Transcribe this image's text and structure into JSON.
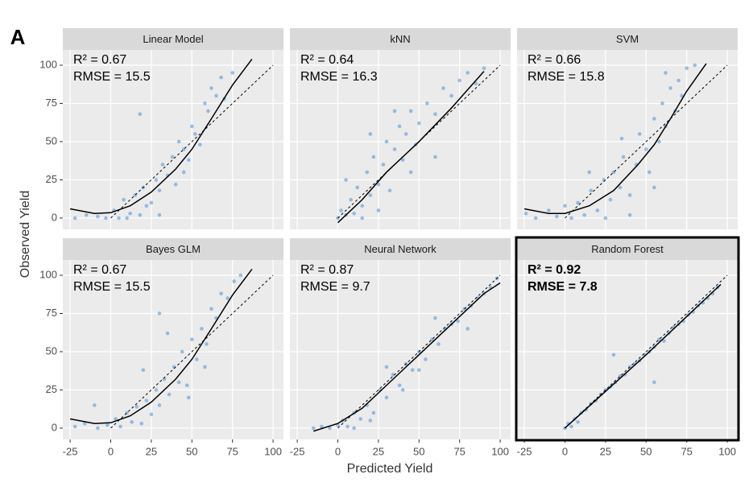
{
  "panel_label": "A",
  "xlabel": "Predicted Yield",
  "ylabel": "Observed Yield",
  "chart_data": [
    {
      "type": "scatter",
      "title": "Linear Model",
      "annotations": [
        "R² = 0.67",
        "RMSE = 15.5"
      ],
      "highlight": false,
      "xlim": [
        -29.5,
        106.4
      ],
      "ylim": [
        -7.4,
        110
      ],
      "xticks": [
        -25,
        0,
        25,
        50,
        75,
        100
      ],
      "yticks": [
        0,
        25,
        50,
        75,
        100
      ],
      "grid": true,
      "points": {
        "color": "#4a8fd6",
        "x": [
          -22,
          -15,
          -8,
          -3,
          2,
          5,
          8,
          12,
          15,
          18,
          20,
          22,
          25,
          28,
          30,
          32,
          35,
          38,
          40,
          42,
          45,
          48,
          50,
          52,
          55,
          58,
          60,
          62,
          65,
          68,
          70,
          75,
          18,
          30,
          10,
          45
        ],
        "y": [
          0,
          2,
          1,
          0,
          5,
          0,
          12,
          3,
          15,
          2,
          20,
          8,
          10,
          25,
          18,
          35,
          28,
          40,
          22,
          50,
          45,
          38,
          60,
          55,
          48,
          75,
          70,
          85,
          80,
          92,
          78,
          95,
          68,
          2,
          0,
          30
        ]
      },
      "fit": {
        "color": "#000000",
        "x": [
          -25,
          -10,
          0,
          12,
          25,
          40,
          50,
          62,
          75,
          87
        ],
        "y": [
          6,
          3,
          3.5,
          8,
          17,
          32,
          45,
          65,
          87,
          104
        ]
      },
      "reference": {
        "color": "#000000",
        "x": [
          0,
          100
        ],
        "y": [
          0,
          100
        ]
      }
    },
    {
      "type": "scatter",
      "title": "kNN",
      "annotations": [
        "R² = 0.64",
        "RMSE = 16.3"
      ],
      "highlight": false,
      "xlim": [
        -29.5,
        106.4
      ],
      "ylim": [
        -7.4,
        110
      ],
      "xticks": [
        -25,
        0,
        25,
        50,
        75,
        100
      ],
      "yticks": [
        0,
        25,
        50,
        75,
        100
      ],
      "grid": true,
      "points": {
        "color": "#4a8fd6",
        "x": [
          0,
          2,
          5,
          8,
          10,
          12,
          15,
          18,
          20,
          22,
          25,
          28,
          30,
          32,
          35,
          38,
          40,
          42,
          45,
          48,
          50,
          55,
          60,
          65,
          70,
          75,
          80,
          85,
          90,
          5,
          15,
          25,
          35,
          45,
          60,
          20
        ],
        "y": [
          0,
          5,
          2,
          12,
          3,
          20,
          8,
          30,
          15,
          40,
          22,
          35,
          50,
          18,
          45,
          60,
          38,
          55,
          70,
          48,
          62,
          75,
          68,
          85,
          80,
          90,
          95,
          88,
          98,
          25,
          0,
          5,
          70,
          30,
          40,
          55
        ]
      },
      "fit": {
        "color": "#000000",
        "x": [
          0,
          15,
          30,
          50,
          70,
          90
        ],
        "y": [
          -3,
          12,
          30,
          50,
          72,
          96
        ]
      },
      "reference": {
        "color": "#000000",
        "x": [
          0,
          100
        ],
        "y": [
          0,
          100
        ]
      }
    },
    {
      "type": "scatter",
      "title": "SVM",
      "annotations": [
        "R² = 0.66",
        "RMSE = 15.8"
      ],
      "highlight": false,
      "xlim": [
        -29.5,
        106.4
      ],
      "ylim": [
        -7.4,
        110
      ],
      "xticks": [
        -25,
        0,
        25,
        50,
        75,
        100
      ],
      "yticks": [
        0,
        25,
        50,
        75,
        100
      ],
      "grid": true,
      "points": {
        "color": "#4a8fd6",
        "x": [
          -24,
          -18,
          -10,
          -5,
          0,
          4,
          8,
          12,
          16,
          20,
          24,
          28,
          30,
          34,
          36,
          40,
          44,
          46,
          50,
          52,
          55,
          58,
          60,
          62,
          65,
          68,
          70,
          72,
          75,
          80,
          25,
          40,
          55,
          15,
          35,
          62
        ],
        "y": [
          3,
          0,
          5,
          1,
          8,
          0,
          10,
          2,
          18,
          5,
          25,
          12,
          30,
          20,
          40,
          15,
          35,
          55,
          45,
          30,
          65,
          50,
          75,
          60,
          85,
          70,
          90,
          80,
          98,
          100,
          0,
          2,
          20,
          30,
          52,
          95
        ]
      },
      "fit": {
        "color": "#000000",
        "x": [
          -25,
          -10,
          0,
          15,
          30,
          45,
          55,
          65,
          75,
          87
        ],
        "y": [
          6,
          3,
          3,
          8,
          18,
          35,
          48,
          65,
          83,
          101
        ]
      },
      "reference": {
        "color": "#000000",
        "x": [
          0,
          100
        ],
        "y": [
          0,
          100
        ]
      }
    },
    {
      "type": "scatter",
      "title": "Bayes GLM",
      "annotations": [
        "R² = 0.67",
        "RMSE = 15.5"
      ],
      "highlight": false,
      "xlim": [
        -29.5,
        106.4
      ],
      "ylim": [
        -7.4,
        110
      ],
      "xticks": [
        -25,
        0,
        25,
        50,
        75,
        100
      ],
      "yticks": [
        0,
        25,
        50,
        75,
        100
      ],
      "grid": true,
      "points": {
        "color": "#4a8fd6",
        "x": [
          -22,
          -16,
          -8,
          -2,
          3,
          6,
          10,
          13,
          16,
          19,
          22,
          25,
          28,
          30,
          33,
          36,
          39,
          42,
          44,
          47,
          50,
          53,
          56,
          59,
          62,
          65,
          68,
          72,
          76,
          80,
          -10,
          20,
          35,
          48,
          58,
          30
        ],
        "y": [
          1,
          3,
          0,
          2,
          6,
          1,
          10,
          4,
          14,
          3,
          18,
          9,
          25,
          15,
          32,
          22,
          40,
          30,
          50,
          28,
          58,
          45,
          65,
          55,
          78,
          72,
          88,
          85,
          96,
          100,
          15,
          38,
          62,
          20,
          40,
          75
        ]
      },
      "fit": {
        "color": "#000000",
        "x": [
          -25,
          -10,
          0,
          12,
          25,
          40,
          50,
          62,
          75,
          87
        ],
        "y": [
          6,
          3,
          3.5,
          8,
          17,
          32,
          45,
          65,
          87,
          104
        ]
      },
      "reference": {
        "color": "#000000",
        "x": [
          0,
          100
        ],
        "y": [
          0,
          100
        ]
      }
    },
    {
      "type": "scatter",
      "title": "Neural Network",
      "annotations": [
        "R² = 0.87",
        "RMSE = 9.7"
      ],
      "highlight": false,
      "xlim": [
        -29.5,
        106.4
      ],
      "ylim": [
        -7.4,
        110
      ],
      "xticks": [
        -25,
        0,
        25,
        50,
        75,
        100
      ],
      "yticks": [
        0,
        25,
        50,
        75,
        100
      ],
      "grid": true,
      "points": {
        "color": "#4a8fd6",
        "x": [
          -15,
          -10,
          -5,
          0,
          3,
          6,
          10,
          14,
          18,
          22,
          26,
          30,
          34,
          38,
          42,
          46,
          50,
          54,
          58,
          62,
          66,
          70,
          74,
          78,
          82,
          86,
          90,
          94,
          98,
          20,
          40,
          60,
          80,
          10,
          30,
          50
        ],
        "y": [
          0,
          1,
          0,
          2,
          5,
          1,
          10,
          6,
          15,
          10,
          25,
          20,
          35,
          28,
          42,
          38,
          50,
          45,
          58,
          55,
          65,
          68,
          70,
          78,
          80,
          85,
          88,
          92,
          98,
          5,
          25,
          72,
          65,
          0,
          40,
          38
        ]
      },
      "fit": {
        "color": "#000000",
        "x": [
          -15,
          0,
          15,
          30,
          50,
          70,
          90,
          100
        ],
        "y": [
          -2,
          3,
          13,
          28,
          48,
          68,
          88,
          95
        ]
      },
      "reference": {
        "color": "#000000",
        "x": [
          0,
          100
        ],
        "y": [
          0,
          100
        ]
      }
    },
    {
      "type": "scatter",
      "title": "Random Forest",
      "annotations": [
        "R² = 0.92",
        "RMSE = 7.8"
      ],
      "highlight": true,
      "xlim": [
        -29.5,
        106.4
      ],
      "ylim": [
        -7.4,
        110
      ],
      "xticks": [
        -25,
        0,
        25,
        50,
        75,
        100
      ],
      "yticks": [
        0,
        25,
        50,
        75,
        100
      ],
      "grid": true,
      "points": {
        "color": "#4a8fd6",
        "x": [
          0,
          2,
          4,
          6,
          8,
          10,
          13,
          16,
          19,
          22,
          25,
          28,
          31,
          34,
          37,
          40,
          43,
          46,
          49,
          52,
          55,
          58,
          61,
          64,
          67,
          70,
          73,
          76,
          79,
          82,
          85,
          88,
          91,
          94,
          30,
          55
        ],
        "y": [
          0,
          3,
          1,
          6,
          4,
          10,
          12,
          16,
          18,
          22,
          25,
          27,
          30,
          34,
          35,
          40,
          42,
          44,
          48,
          50,
          53,
          58,
          57,
          62,
          66,
          68,
          70,
          74,
          76,
          80,
          82,
          85,
          88,
          92,
          48,
          30
        ]
      },
      "fit": {
        "color": "#000000",
        "x": [
          0,
          25,
          50,
          75,
          96
        ],
        "y": [
          0,
          24,
          48,
          73,
          94
        ]
      },
      "reference": {
        "color": "#000000",
        "x": [
          0,
          100
        ],
        "y": [
          0,
          100
        ]
      }
    }
  ]
}
